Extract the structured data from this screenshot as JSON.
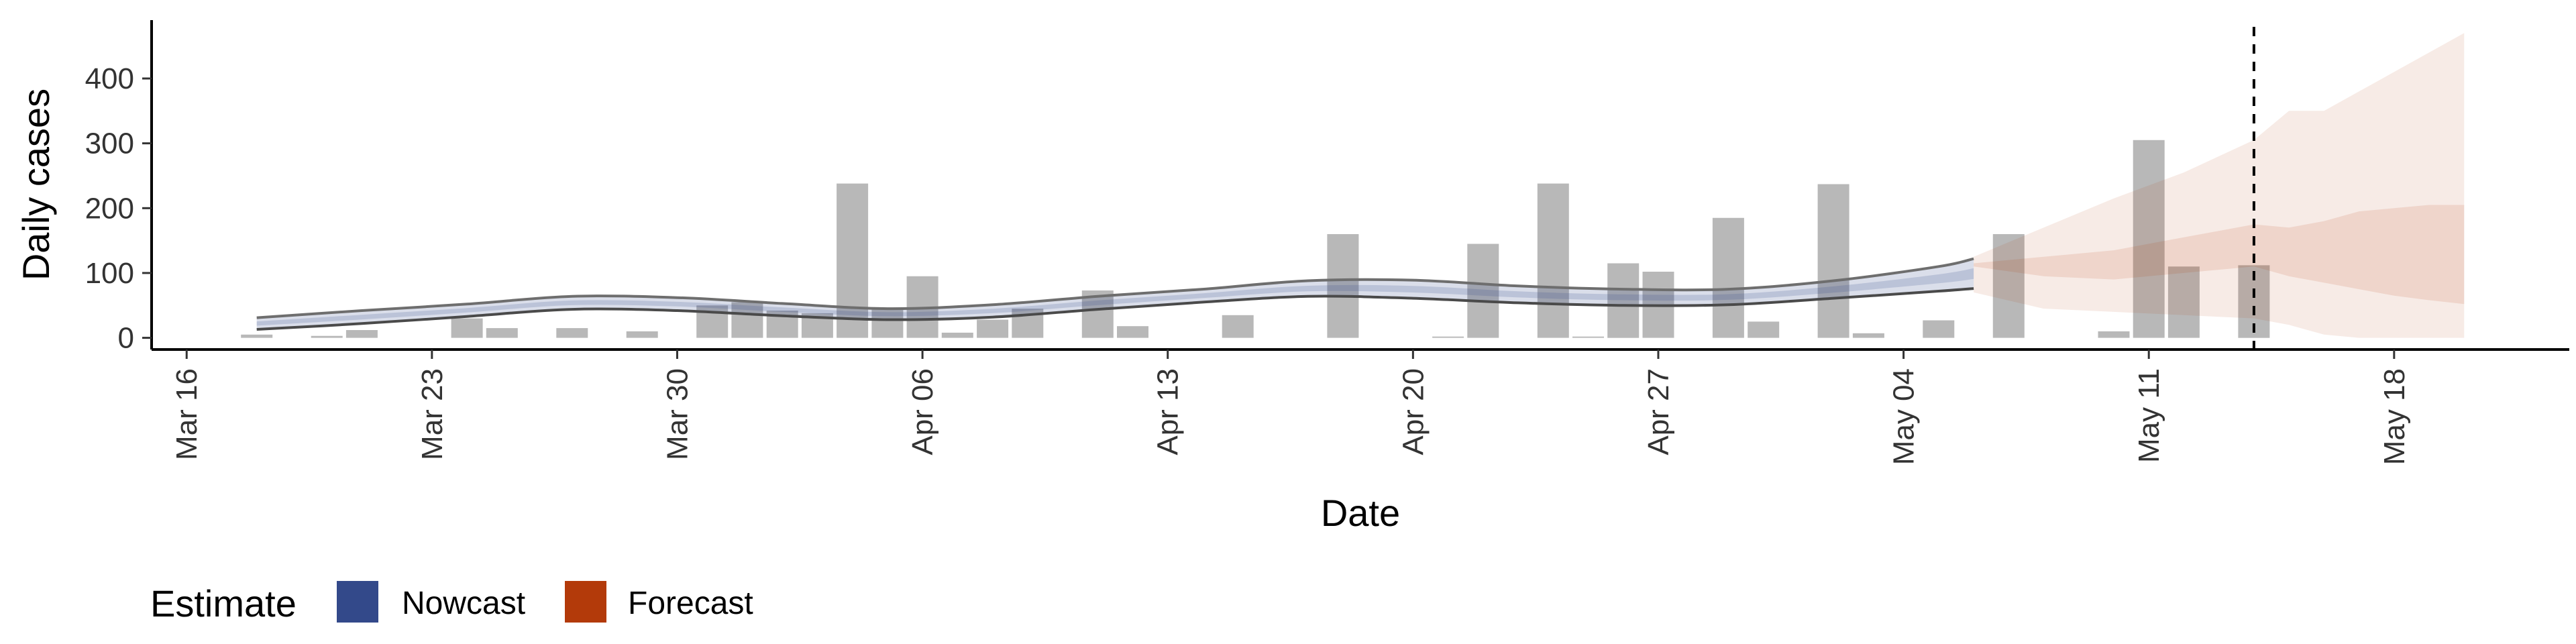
{
  "chart_data": {
    "type": "bar",
    "xlabel": "Date",
    "ylabel": "Daily cases",
    "ylim": [
      -18,
      490
    ],
    "xlim": [
      "2020-03-15",
      "2020-05-23"
    ],
    "grid": false,
    "x_ticks": [
      {
        "date": "2020-03-16",
        "label": "Mar 16"
      },
      {
        "date": "2020-03-23",
        "label": "Mar 23"
      },
      {
        "date": "2020-03-30",
        "label": "Mar 30"
      },
      {
        "date": "2020-04-06",
        "label": "Apr 06"
      },
      {
        "date": "2020-04-13",
        "label": "Apr 13"
      },
      {
        "date": "2020-04-20",
        "label": "Apr 20"
      },
      {
        "date": "2020-04-27",
        "label": "Apr 27"
      },
      {
        "date": "2020-05-04",
        "label": "May 04"
      },
      {
        "date": "2020-05-11",
        "label": "May 11"
      },
      {
        "date": "2020-05-18",
        "label": "May 18"
      }
    ],
    "y_ticks": [
      0,
      100,
      200,
      300,
      400
    ],
    "reported_cases": {
      "color": "#a6a6a6",
      "points": [
        {
          "date": "2020-03-18",
          "value": 5
        },
        {
          "date": "2020-03-20",
          "value": 3
        },
        {
          "date": "2020-03-21",
          "value": 12
        },
        {
          "date": "2020-03-24",
          "value": 30
        },
        {
          "date": "2020-03-25",
          "value": 15
        },
        {
          "date": "2020-03-27",
          "value": 15
        },
        {
          "date": "2020-03-29",
          "value": 10
        },
        {
          "date": "2020-03-31",
          "value": 50
        },
        {
          "date": "2020-04-01",
          "value": 55
        },
        {
          "date": "2020-04-02",
          "value": 42
        },
        {
          "date": "2020-04-03",
          "value": 38
        },
        {
          "date": "2020-04-04",
          "value": 238
        },
        {
          "date": "2020-04-05",
          "value": 45
        },
        {
          "date": "2020-04-06",
          "value": 95
        },
        {
          "date": "2020-04-07",
          "value": 8
        },
        {
          "date": "2020-04-08",
          "value": 28
        },
        {
          "date": "2020-04-09",
          "value": 45
        },
        {
          "date": "2020-04-11",
          "value": 73
        },
        {
          "date": "2020-04-12",
          "value": 18
        },
        {
          "date": "2020-04-15",
          "value": 35
        },
        {
          "date": "2020-04-18",
          "value": 160
        },
        {
          "date": "2020-04-21",
          "value": 2
        },
        {
          "date": "2020-04-22",
          "value": 145
        },
        {
          "date": "2020-04-24",
          "value": 238
        },
        {
          "date": "2020-04-25",
          "value": 2
        },
        {
          "date": "2020-04-26",
          "value": 115
        },
        {
          "date": "2020-04-27",
          "value": 102
        },
        {
          "date": "2020-04-29",
          "value": 185
        },
        {
          "date": "2020-04-30",
          "value": 25
        },
        {
          "date": "2020-05-02",
          "value": 237
        },
        {
          "date": "2020-05-03",
          "value": 7
        },
        {
          "date": "2020-05-05",
          "value": 27
        },
        {
          "date": "2020-05-07",
          "value": 160
        },
        {
          "date": "2020-05-10",
          "value": 10
        },
        {
          "date": "2020-05-11",
          "value": 305
        },
        {
          "date": "2020-05-12",
          "value": 110
        },
        {
          "date": "2020-05-14",
          "value": 112
        }
      ]
    },
    "nowcast": {
      "name": "Nowcast",
      "color": "#33498a",
      "x": [
        "2020-03-18",
        "2020-03-21",
        "2020-03-24",
        "2020-03-27",
        "2020-03-30",
        "2020-04-02",
        "2020-04-05",
        "2020-04-08",
        "2020-04-11",
        "2020-04-14",
        "2020-04-17",
        "2020-04-20",
        "2020-04-23",
        "2020-04-26",
        "2020-04-29",
        "2020-05-02",
        "2020-05-05",
        "2020-05-06"
      ],
      "lower": [
        13,
        22,
        33,
        44,
        42,
        34,
        28,
        32,
        44,
        55,
        64,
        61,
        54,
        50,
        51,
        61,
        72,
        76
      ],
      "upper": [
        31,
        42,
        52,
        64,
        62,
        53,
        45,
        51,
        64,
        75,
        88,
        89,
        80,
        75,
        75,
        88,
        110,
        122
      ]
    },
    "forecast": {
      "name": "Forecast",
      "color": "#b33a0a",
      "x": [
        "2020-05-06",
        "2020-05-08",
        "2020-05-10",
        "2020-05-12",
        "2020-05-14",
        "2020-05-15",
        "2020-05-16",
        "2020-05-17",
        "2020-05-18",
        "2020-05-19",
        "2020-05-20"
      ],
      "lower": [
        70,
        45,
        40,
        35,
        30,
        20,
        5,
        0,
        0,
        0,
        0
      ],
      "upper": [
        125,
        170,
        215,
        255,
        305,
        350,
        350,
        380,
        410,
        440,
        470
      ],
      "inner_lower": [
        110,
        95,
        90,
        100,
        110,
        95,
        85,
        75,
        65,
        58,
        52
      ],
      "inner_upper": [
        115,
        125,
        135,
        155,
        175,
        170,
        180,
        195,
        200,
        205,
        205
      ]
    },
    "reference_line": {
      "date": "2020-05-14",
      "style": "dashed"
    },
    "legend": {
      "position": "bottom-left",
      "title": "Estimate",
      "entries": [
        {
          "label": "Nowcast",
          "color": "#33498a"
        },
        {
          "label": "Forecast",
          "color": "#b33a0a"
        }
      ]
    }
  }
}
